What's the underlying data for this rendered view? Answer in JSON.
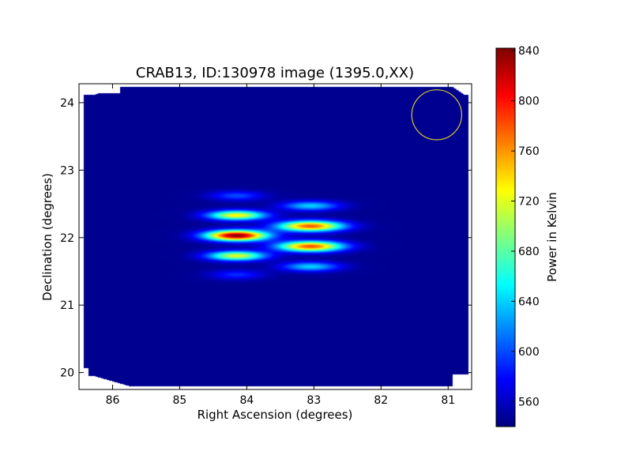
{
  "chart_data": {
    "type": "heatmap",
    "title": "CRAB13, ID:130978 image (1395.0,XX)",
    "xlabel": "Right Ascension (degrees)",
    "ylabel": "Declination (degrees)",
    "x_axis_reversed": true,
    "xlim": [
      86.5,
      80.65
    ],
    "ylim": [
      19.75,
      24.28
    ],
    "xticks": [
      86,
      85,
      84,
      83,
      82,
      81
    ],
    "yticks": [
      20,
      21,
      22,
      23,
      24
    ],
    "colorbar": {
      "label": "Power in Kelvin",
      "colormap": "jet",
      "range": [
        540,
        842
      ],
      "ticks": [
        560,
        600,
        640,
        680,
        720,
        760,
        800,
        840
      ]
    },
    "background_value": 545,
    "sources": [
      {
        "ra": 84.15,
        "dec": 22.03,
        "peak": 840,
        "ra_sigma": 0.32,
        "dec_sigma": 0.055
      },
      {
        "ra": 84.15,
        "dec": 22.33,
        "peak": 730,
        "ra_sigma": 0.3,
        "dec_sigma": 0.05
      },
      {
        "ra": 84.15,
        "dec": 21.73,
        "peak": 720,
        "ra_sigma": 0.3,
        "dec_sigma": 0.05
      },
      {
        "ra": 84.15,
        "dec": 22.62,
        "peak": 600,
        "ra_sigma": 0.28,
        "dec_sigma": 0.05
      },
      {
        "ra": 84.15,
        "dec": 21.45,
        "peak": 590,
        "ra_sigma": 0.28,
        "dec_sigma": 0.05
      },
      {
        "ra": 83.05,
        "dec": 22.17,
        "peak": 780,
        "ra_sigma": 0.34,
        "dec_sigma": 0.055
      },
      {
        "ra": 83.05,
        "dec": 21.87,
        "peak": 780,
        "ra_sigma": 0.34,
        "dec_sigma": 0.055
      },
      {
        "ra": 83.05,
        "dec": 22.47,
        "peak": 640,
        "ra_sigma": 0.3,
        "dec_sigma": 0.05
      },
      {
        "ra": 83.05,
        "dec": 21.57,
        "peak": 640,
        "ra_sigma": 0.3,
        "dec_sigma": 0.05
      }
    ],
    "beam_circle": {
      "ra": 81.17,
      "dec": 23.82,
      "radius_deg": 0.37,
      "color": "#d4c62a"
    }
  }
}
